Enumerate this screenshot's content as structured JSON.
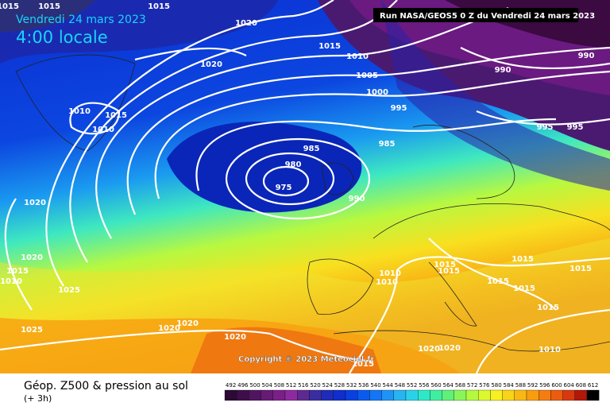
{
  "header": {
    "date": "Vendredi 24 mars 2023",
    "time": "4:00 locale"
  },
  "run_info": "Run NASA/GEOS5 0 Z du Vendredi 24 mars 2023",
  "copyright": "Copyright © 2023 Meteociel.fr",
  "legend": {
    "title": "Géop. Z500 & pression au sol",
    "subtitle": "(+ 3h)",
    "scale": [
      492,
      496,
      500,
      504,
      508,
      512,
      516,
      520,
      524,
      528,
      532,
      536,
      540,
      544,
      548,
      552,
      556,
      560,
      564,
      568,
      572,
      576,
      580,
      584,
      588,
      592,
      596,
      600,
      604,
      608,
      612
    ]
  },
  "isobar_labels": [
    1015,
    1015,
    1015,
    1020,
    1020,
    1015,
    1010,
    1005,
    1000,
    995,
    1010,
    1015,
    1010,
    985,
    985,
    980,
    975,
    990,
    1020,
    1020,
    1015,
    1010,
    1025,
    1025,
    1020,
    1020,
    1020,
    990,
    990,
    995,
    995,
    1015,
    1015,
    1015,
    1015,
    1010,
    1010,
    1015,
    1015,
    1015,
    1010,
    1020,
    1020,
    1015
  ]
}
